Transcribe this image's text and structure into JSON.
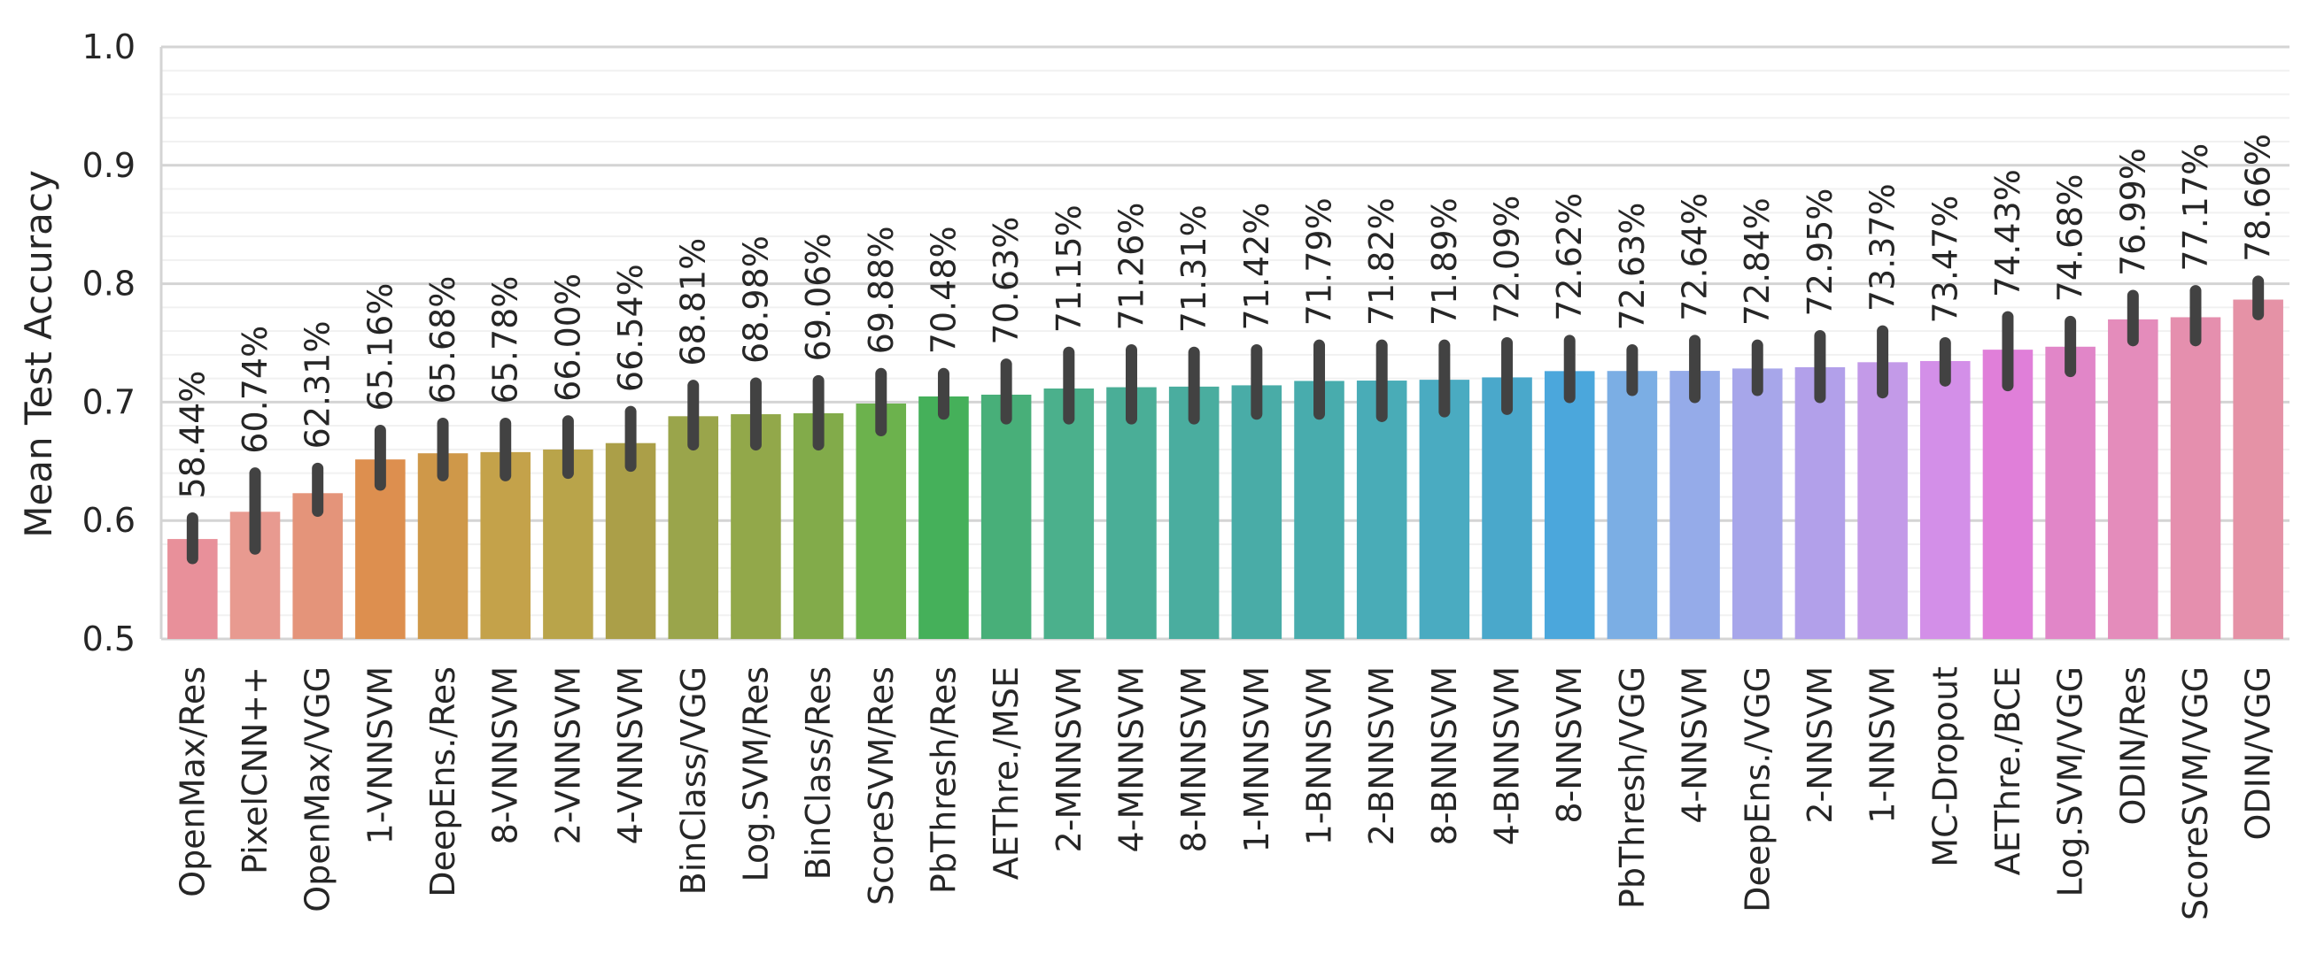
{
  "chart_data": {
    "type": "bar",
    "title": "",
    "xlabel": "",
    "ylabel": "Mean Test Accuracy",
    "ylim": [
      0.5,
      1.0
    ],
    "yticks": [
      "0.5",
      "0.6",
      "0.7",
      "0.8",
      "0.9",
      "1.0"
    ],
    "grid": "horizontal",
    "error_bars": true,
    "categories": [
      "OpenMax/Res",
      "PixelCNN++",
      "OpenMax/VGG",
      "1-VNNSVM",
      "DeepEns./Res",
      "8-VNNSVM",
      "2-VNNSVM",
      "4-VNNSVM",
      "BinClass/VGG",
      "Log.SVM/Res",
      "BinClass/Res",
      "ScoreSVM/Res",
      "PbThresh/Res",
      "AEThre./MSE",
      "2-MNNSVM",
      "4-MNNSVM",
      "8-MNNSVM",
      "1-MNNSVM",
      "1-BNNSVM",
      "2-BNNSVM",
      "8-BNNSVM",
      "4-BNNSVM",
      "8-NNSVM",
      "PbThresh/VGG",
      "4-NNSVM",
      "DeepEns./VGG",
      "2-NNSVM",
      "1-NNSVM",
      "MC-Dropout",
      "AEThre./BCE",
      "Log.SVM/VGG",
      "ODIN/Res",
      "ScoreSVM/VGG",
      "ODIN/VGG"
    ],
    "values": [
      0.5844,
      0.6074,
      0.6231,
      0.6516,
      0.6568,
      0.6578,
      0.66,
      0.6654,
      0.6881,
      0.6898,
      0.6906,
      0.6988,
      0.7048,
      0.7063,
      0.7115,
      0.7126,
      0.7131,
      0.7142,
      0.7179,
      0.7182,
      0.7189,
      0.7209,
      0.7262,
      0.7263,
      0.7264,
      0.7284,
      0.7295,
      0.7337,
      0.7347,
      0.7443,
      0.7468,
      0.7699,
      0.7717,
      0.7866
    ],
    "labels": [
      "58.44%",
      "60.74%",
      "62.31%",
      "65.16%",
      "65.68%",
      "65.78%",
      "66.00%",
      "66.54%",
      "68.81%",
      "68.98%",
      "69.06%",
      "69.88%",
      "70.48%",
      "70.63%",
      "71.15%",
      "71.26%",
      "71.31%",
      "71.42%",
      "71.79%",
      "71.82%",
      "71.89%",
      "72.09%",
      "72.62%",
      "72.63%",
      "72.64%",
      "72.84%",
      "72.95%",
      "73.37%",
      "73.47%",
      "74.43%",
      "74.68%",
      "76.99%",
      "77.17%",
      "78.66%"
    ],
    "error_low": [
      0.568,
      0.576,
      0.608,
      0.63,
      0.638,
      0.638,
      0.64,
      0.646,
      0.664,
      0.664,
      0.664,
      0.676,
      0.69,
      0.686,
      0.686,
      0.686,
      0.686,
      0.69,
      0.69,
      0.688,
      0.692,
      0.694,
      0.704,
      0.71,
      0.704,
      0.71,
      0.704,
      0.708,
      0.718,
      0.714,
      0.726,
      0.752,
      0.752,
      0.774
    ],
    "error_high": [
      0.602,
      0.64,
      0.644,
      0.676,
      0.682,
      0.682,
      0.684,
      0.692,
      0.714,
      0.716,
      0.718,
      0.724,
      0.724,
      0.732,
      0.742,
      0.744,
      0.742,
      0.744,
      0.748,
      0.748,
      0.748,
      0.75,
      0.752,
      0.744,
      0.752,
      0.748,
      0.756,
      0.76,
      0.75,
      0.772,
      0.768,
      0.79,
      0.794,
      0.802
    ],
    "colors": [
      "#e8909a",
      "#e89a90",
      "#e4947a",
      "#dd8f4f",
      "#cf9849",
      "#c4a24a",
      "#b9a44a",
      "#ab9f48",
      "#9aa54b",
      "#92a84a",
      "#82ab4a",
      "#6cb24d",
      "#45b05a",
      "#48af79",
      "#4bb08c",
      "#4aae97",
      "#4aad9f",
      "#49aca7",
      "#48acad",
      "#49acb7",
      "#4aabc1",
      "#4aa8cb",
      "#4ba7dc",
      "#7baee4",
      "#95abe9",
      "#a7a6ea",
      "#b2a0ea",
      "#c39ae8",
      "#d38fe8",
      "#e07fd9",
      "#e186c8",
      "#e48cbb",
      "#e58fae",
      "#e592a6"
    ]
  }
}
